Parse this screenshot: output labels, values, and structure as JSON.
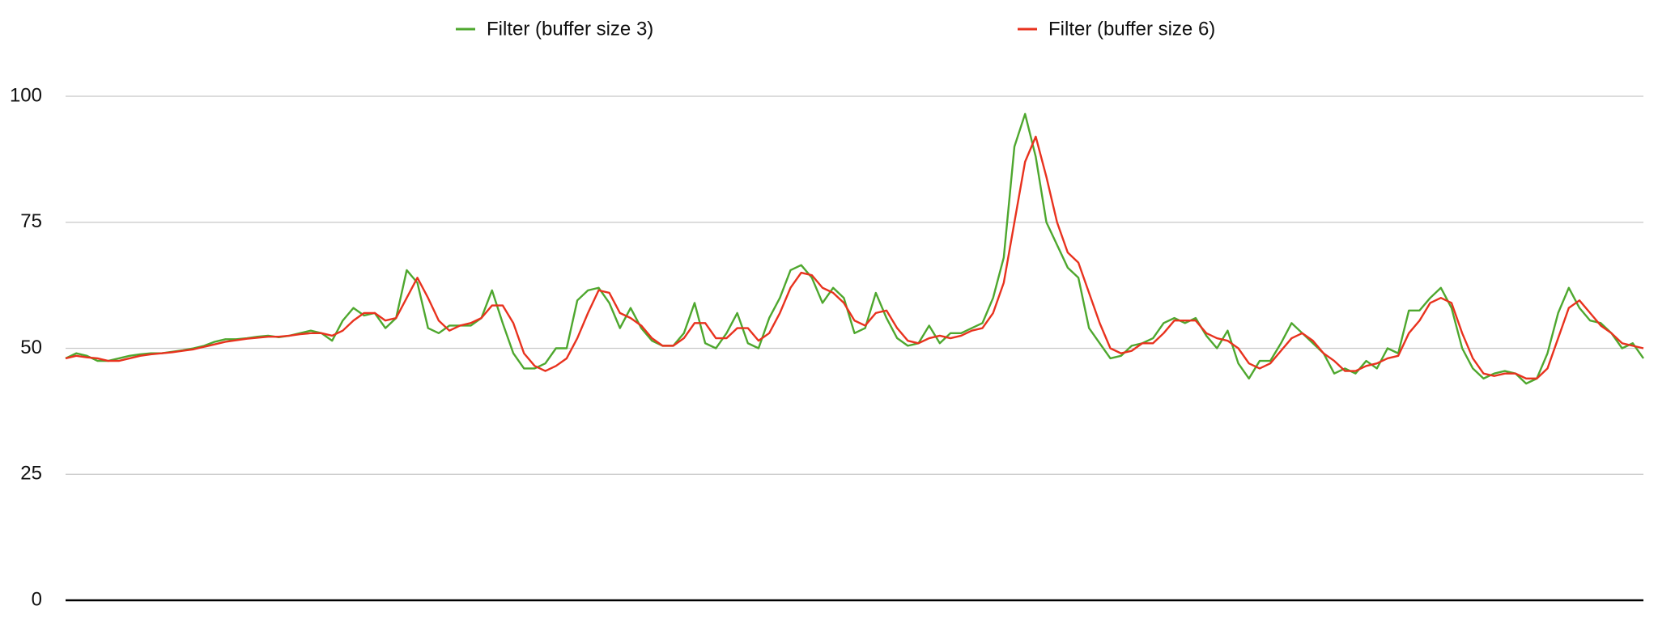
{
  "chart_data": {
    "type": "line",
    "legend": "top",
    "grid": true,
    "ylim": [
      0,
      100
    ],
    "yticks": [
      0,
      25,
      50,
      75,
      100
    ],
    "series": [
      {
        "name": "Filter (buffer size 3)",
        "color": "#4ea72e",
        "values": [
          48,
          49,
          48.5,
          47.5,
          47.5,
          48,
          48.5,
          48.8,
          49,
          49,
          49.3,
          49.6,
          50,
          50.5,
          51.3,
          51.8,
          51.8,
          52,
          52.3,
          52.5,
          52.2,
          52.5,
          53,
          53.5,
          53,
          51.5,
          55.5,
          58,
          56.5,
          57,
          54,
          56,
          65.5,
          63,
          54,
          53,
          54.5,
          54.5,
          54.5,
          56,
          61.5,
          55,
          49,
          46,
          46,
          47,
          50,
          50,
          59.5,
          61.5,
          62,
          59,
          54,
          58,
          54,
          51.5,
          50.5,
          50.5,
          53,
          59,
          51,
          50,
          53,
          57,
          51,
          50,
          56,
          60,
          65.5,
          66.5,
          64,
          59,
          62,
          60,
          53,
          54,
          61,
          56,
          52,
          50.5,
          51,
          54.5,
          51,
          53,
          53,
          54,
          55,
          60,
          68,
          90,
          96.5,
          88,
          75,
          70.5,
          66,
          64,
          54,
          51,
          48,
          48.5,
          50.5,
          51,
          52,
          55,
          56,
          55,
          56,
          52.5,
          50,
          53.5,
          47,
          44,
          47.5,
          47.5,
          51,
          55,
          53,
          51,
          49,
          45,
          46,
          45,
          47.5,
          46,
          50,
          49,
          57.5,
          57.5,
          60,
          62,
          58,
          50,
          46,
          44,
          45,
          45.5,
          45,
          43,
          44,
          49,
          57,
          62,
          58,
          55.5,
          55,
          53,
          50,
          51,
          48
        ]
      },
      {
        "name": "Filter (buffer size 6)",
        "color": "#e8321e",
        "values": [
          48,
          48.5,
          48.2,
          48,
          47.5,
          47.5,
          48,
          48.5,
          48.8,
          49,
          49.2,
          49.5,
          49.8,
          50.3,
          50.8,
          51.3,
          51.6,
          51.9,
          52.1,
          52.3,
          52.3,
          52.5,
          52.8,
          53,
          53,
          52.5,
          53.5,
          55.5,
          57,
          57,
          55.5,
          56,
          60,
          64,
          60,
          55.5,
          53.5,
          54.5,
          55,
          56,
          58.5,
          58.5,
          55,
          49,
          46.5,
          45.5,
          46.5,
          48,
          52,
          57,
          61.5,
          61,
          57,
          56,
          54.5,
          52,
          50.5,
          50.5,
          52,
          55,
          55,
          52,
          52,
          54,
          54,
          51.5,
          53,
          57,
          62,
          65,
          64.5,
          62,
          61,
          59,
          55.5,
          54.5,
          57,
          57.5,
          54,
          51.5,
          51,
          52,
          52.5,
          52,
          52.5,
          53.5,
          54,
          57,
          63,
          75,
          87,
          92,
          84,
          75,
          69,
          67,
          61,
          55,
          50,
          49,
          49.5,
          51,
          51,
          53,
          55.5,
          55.5,
          55.5,
          53,
          52,
          51.5,
          50,
          47,
          46,
          47,
          49.5,
          52,
          53,
          51.5,
          49,
          47.5,
          45.5,
          45.5,
          46.5,
          47,
          48,
          48.5,
          53,
          55.5,
          59,
          60,
          59,
          53,
          48,
          45,
          44.5,
          45,
          45,
          44,
          44,
          46,
          52,
          58,
          59.5,
          57,
          54.5,
          53,
          51,
          50.5,
          50
        ]
      }
    ]
  }
}
